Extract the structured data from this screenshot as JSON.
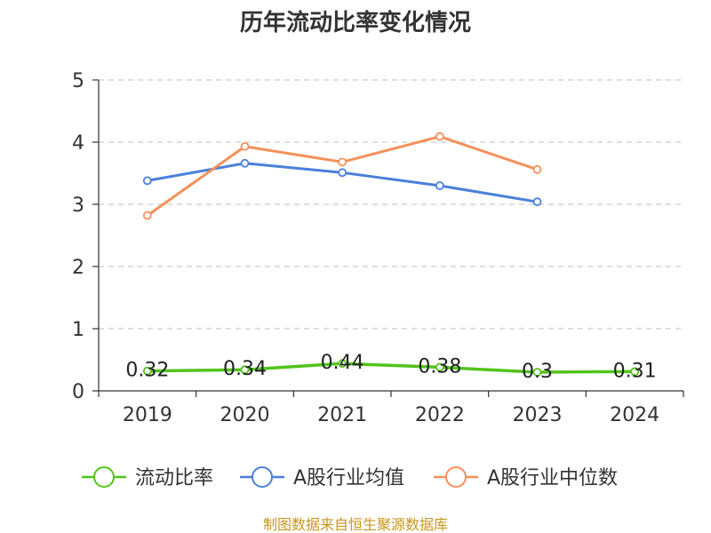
{
  "chart_data": {
    "type": "line",
    "title": "历年流动比率变化情况",
    "categories": [
      "2019",
      "2020",
      "2021",
      "2022",
      "2023",
      "2024"
    ],
    "ylim": [
      0,
      5
    ],
    "yticks": [
      0,
      1,
      2,
      3,
      4,
      5
    ],
    "grid": true,
    "legend_position": "bottom",
    "series": [
      {
        "name": "流动比率",
        "color": "#52c41a",
        "values": [
          0.32,
          0.34,
          0.44,
          0.38,
          0.3,
          0.31
        ],
        "data_labels": [
          "0.32",
          "0.34",
          "0.44",
          "0.38",
          "0.3",
          "0.31"
        ]
      },
      {
        "name": "A股行业均值",
        "color": "#4a7fdb",
        "values": [
          3.38,
          3.66,
          3.51,
          3.3,
          3.04,
          null
        ]
      },
      {
        "name": "A股行业中位数",
        "color": "#f5905b",
        "values": [
          2.82,
          3.93,
          3.68,
          4.09,
          3.56,
          null
        ]
      }
    ]
  },
  "footer": {
    "source": "制图数据来自恒生聚源数据库"
  }
}
